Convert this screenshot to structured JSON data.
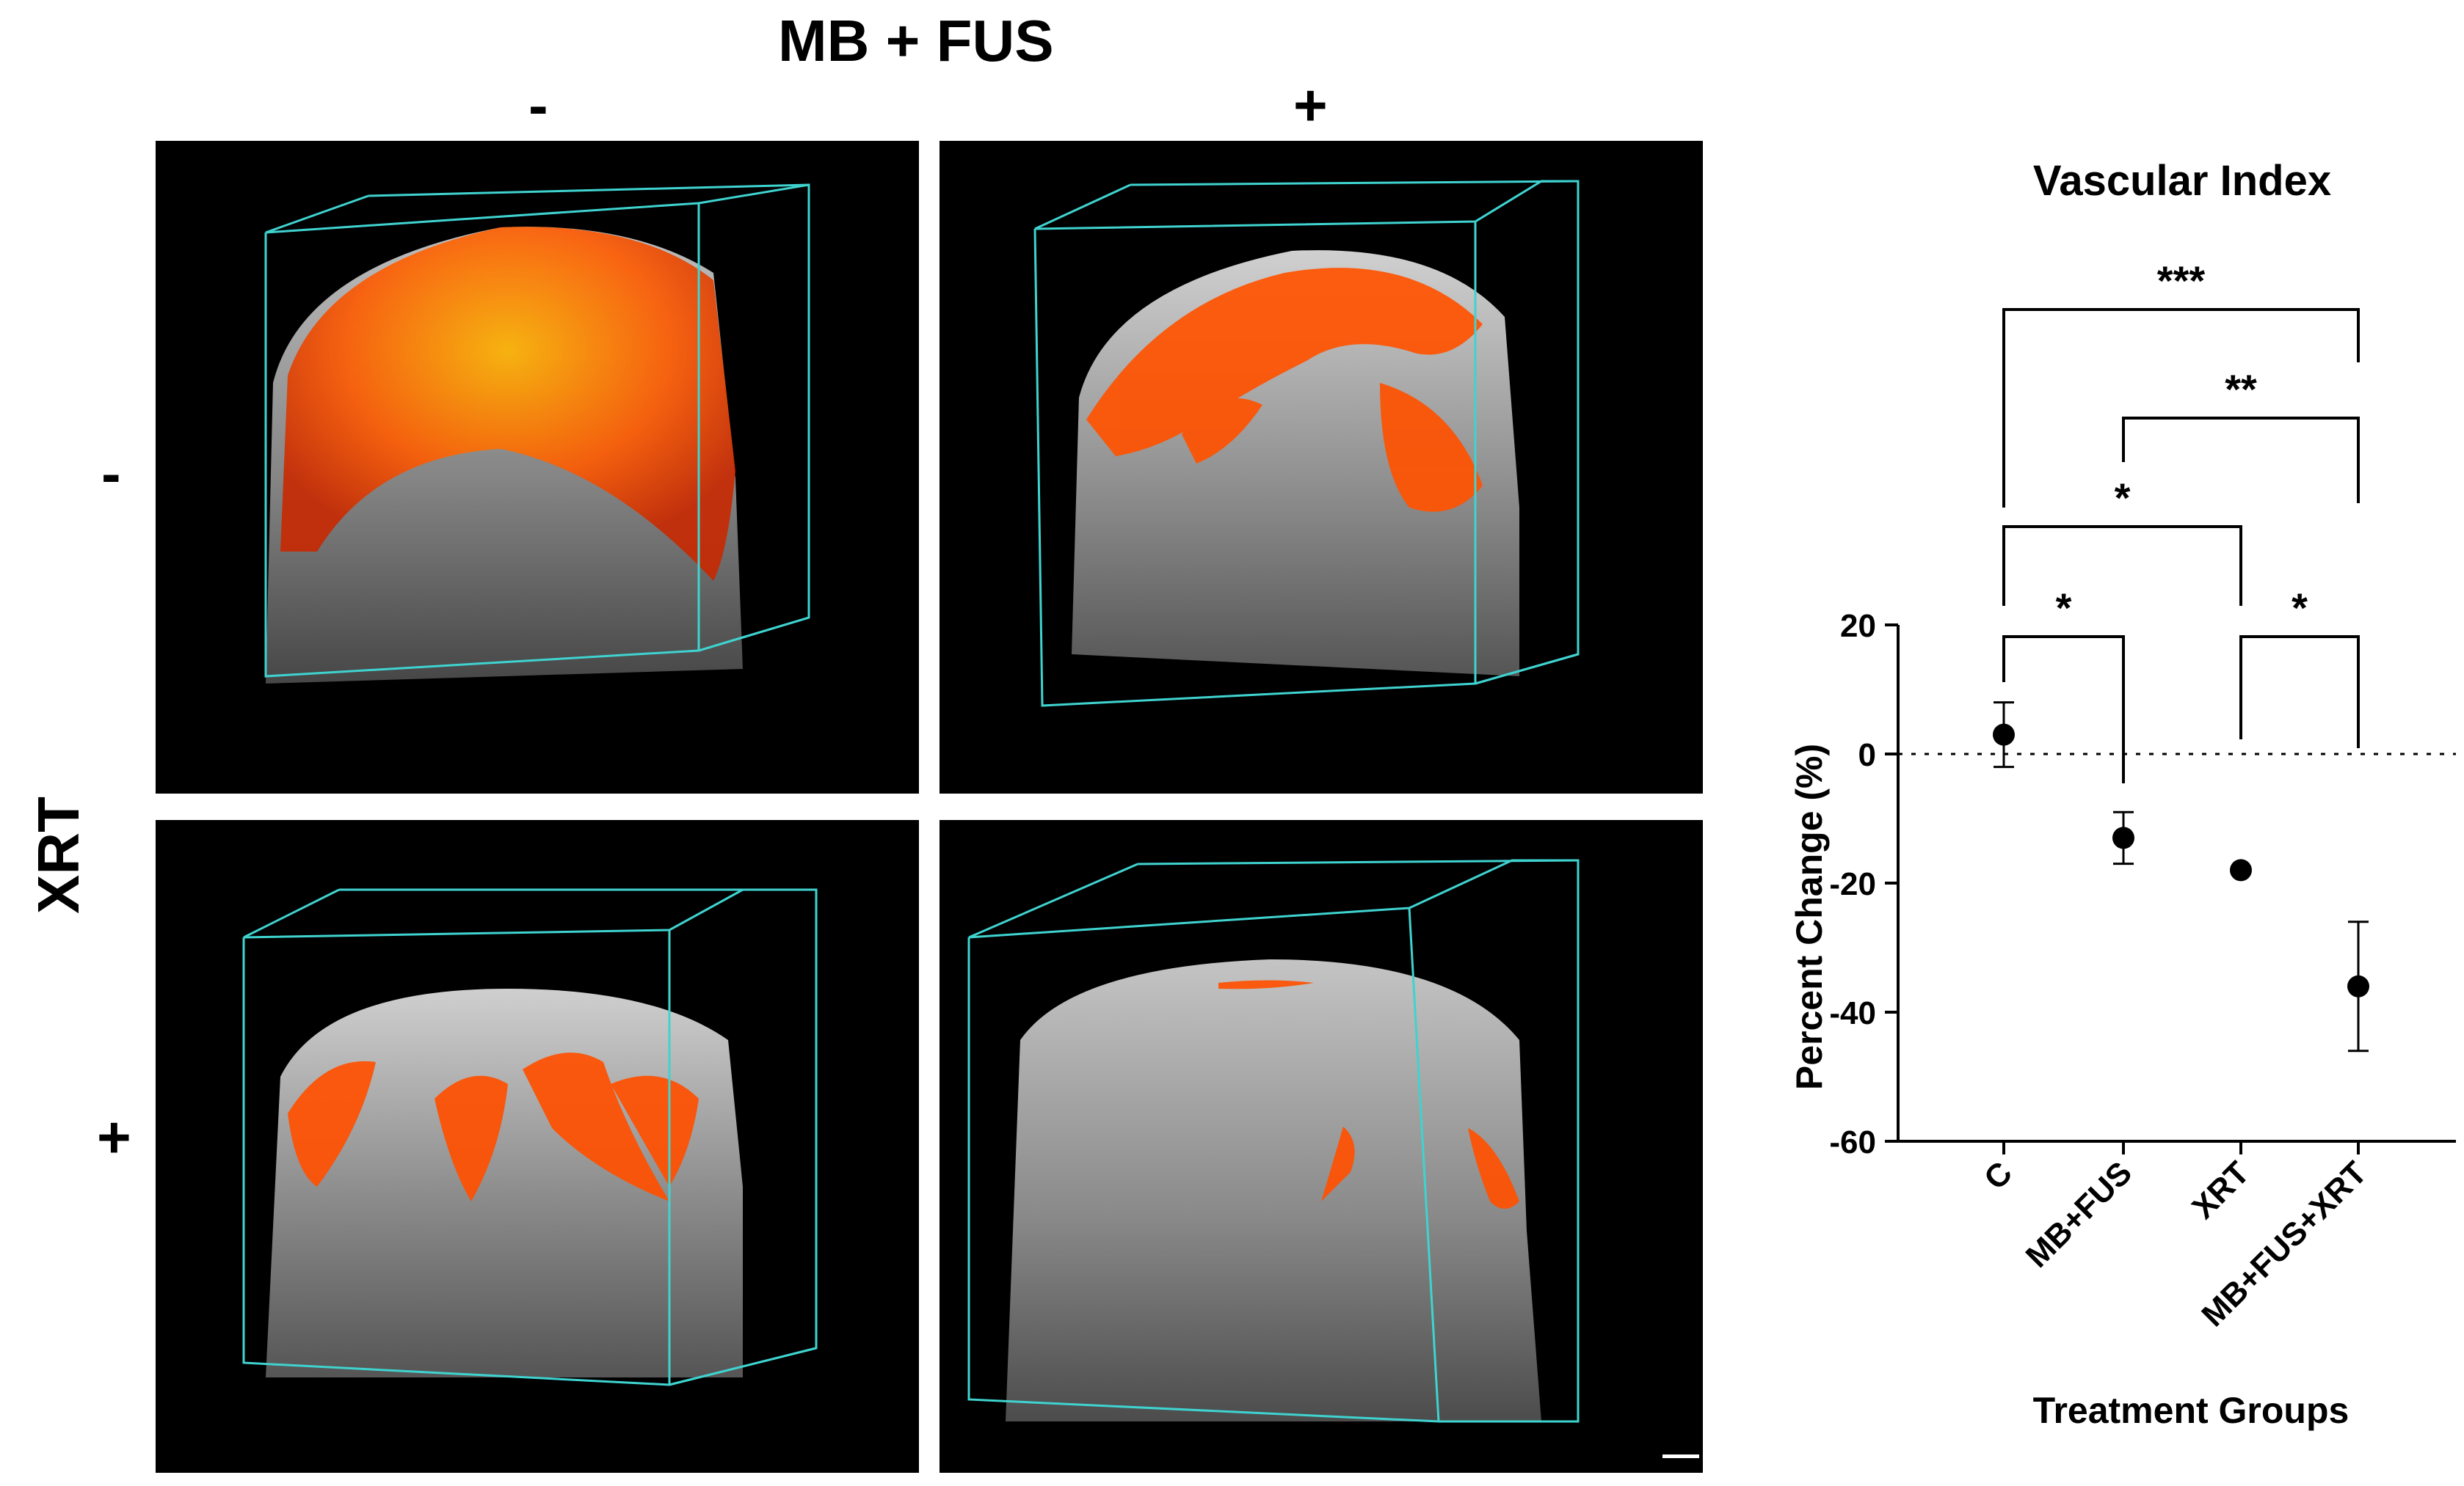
{
  "figure": {
    "column_header": "MB + FUS",
    "column_levels": [
      "-",
      "+"
    ],
    "row_header": "XRT",
    "row_levels": [
      "-",
      "+"
    ],
    "colors": {
      "box_outline": "#3fd3d0",
      "flow_overlay": "#ff5a00",
      "tissue": "#9a9a9a",
      "background": "#000000"
    },
    "panels": [
      {
        "mbfus": "-",
        "xrt": "-",
        "flow_level": "high"
      },
      {
        "mbfus": "+",
        "xrt": "-",
        "flow_level": "medium"
      },
      {
        "mbfus": "-",
        "xrt": "+",
        "flow_level": "medium"
      },
      {
        "mbfus": "+",
        "xrt": "+",
        "flow_level": "low"
      }
    ]
  },
  "chart_data": {
    "type": "scatter",
    "title": "Vascular Index",
    "xlabel": "Treatment Groups",
    "ylabel": "Percent Change (%)",
    "categories": [
      "C",
      "MB+FUS",
      "XRT",
      "MB+FUS+XRT"
    ],
    "values": [
      3,
      -13,
      -18,
      -36
    ],
    "error_low": [
      -2,
      -17,
      -18.5,
      -46
    ],
    "error_high": [
      8,
      -9,
      -17.5,
      -26
    ],
    "ylim": [
      -60,
      20
    ],
    "yticks": [
      "20",
      "0",
      "-20",
      "-40",
      "-60"
    ],
    "reference_line": 0,
    "grid": false,
    "marker_color": "#000000",
    "significance": [
      {
        "from": "C",
        "to": "MB+FUS",
        "label": "*"
      },
      {
        "from": "XRT",
        "to": "MB+FUS+XRT",
        "label": "*"
      },
      {
        "from": "C",
        "to": "XRT",
        "label": "*"
      },
      {
        "from": "MB+FUS",
        "to": "MB+FUS+XRT",
        "label": "**"
      },
      {
        "from": "C",
        "to": "MB+FUS+XRT",
        "label": "***"
      }
    ]
  }
}
